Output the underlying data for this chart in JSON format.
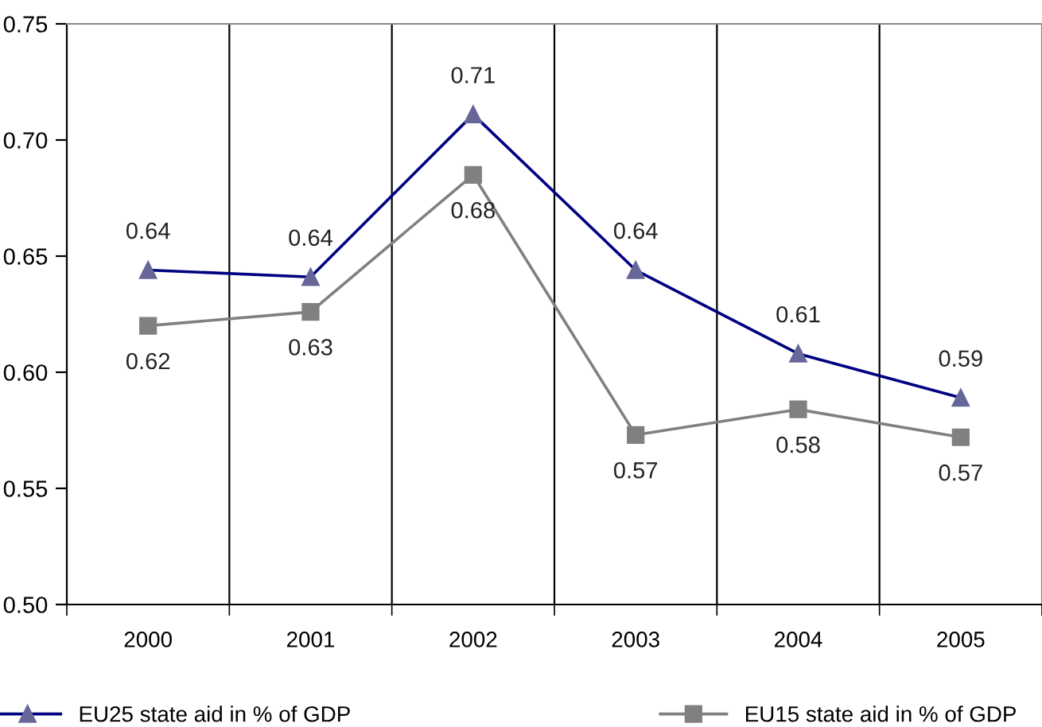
{
  "chart_data": {
    "type": "line",
    "categories": [
      "2000",
      "2001",
      "2002",
      "2003",
      "2004",
      "2005"
    ],
    "series": [
      {
        "name": "EU25 state aid in % of GDP",
        "color": "#000080",
        "marker": "triangle",
        "values": [
          0.644,
          0.641,
          0.711,
          0.644,
          0.608,
          0.589
        ],
        "value_labels": [
          "0.64",
          "0.64",
          "0.71",
          "0.64",
          "0.61",
          "0.59"
        ]
      },
      {
        "name": "EU15 state aid in % of GDP",
        "color": "#808080",
        "marker": "square",
        "values": [
          0.62,
          0.626,
          0.685,
          0.573,
          0.584,
          0.572
        ],
        "value_labels": [
          "0.62",
          "0.63",
          "0.68",
          "0.57",
          "0.58",
          "0.57"
        ]
      }
    ],
    "ylim": [
      0.5,
      0.75
    ],
    "yticks": [
      {
        "value": 0.5,
        "label": "0.50"
      },
      {
        "value": 0.55,
        "label": "0.55"
      },
      {
        "value": 0.6,
        "label": "0.60"
      },
      {
        "value": 0.65,
        "label": "0.65"
      },
      {
        "value": 0.7,
        "label": "0.70"
      },
      {
        "value": 0.75,
        "label": "0.75"
      }
    ],
    "grid": "x",
    "legend": "bottom",
    "line_style": "solid"
  }
}
